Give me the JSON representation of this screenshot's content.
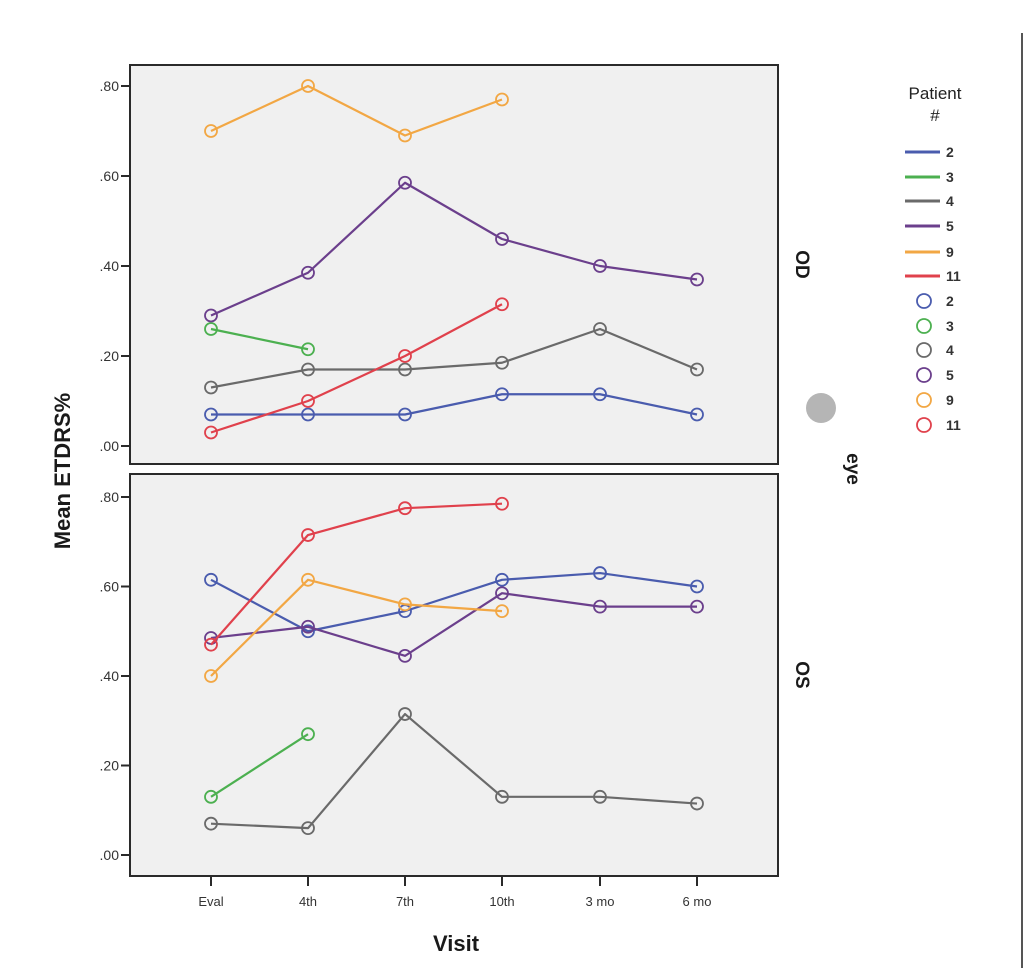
{
  "chart_data": {
    "type": "line",
    "title": "",
    "xlabel": "Visit",
    "ylabel": "Mean ETDRS%",
    "categories": [
      "Eval",
      "4th",
      "7th",
      "10th",
      "3 mo",
      "6 mo"
    ],
    "ylim": [
      0,
      0.84
    ],
    "yticks": [
      0,
      0.2,
      0.4,
      0.6,
      0.8
    ],
    "ytick_labels": [
      ".00",
      ".20",
      ".40",
      ".60",
      ".80"
    ],
    "grid": false,
    "facet_variable": "eye",
    "legend": {
      "title_line1": "Patient",
      "title_line2": "#",
      "placement": "right",
      "line_entries": [
        {
          "label": "2",
          "color": "#4a5cae"
        },
        {
          "label": "3",
          "color": "#4cb050"
        },
        {
          "label": "4",
          "color": "#6a6a6a"
        },
        {
          "label": "5",
          "color": "#6b3f8c"
        },
        {
          "label": "9",
          "color": "#f2a744"
        },
        {
          "label": "11",
          "color": "#e0414c"
        }
      ],
      "marker_entries": [
        {
          "label": "2",
          "color": "#4a5cae"
        },
        {
          "label": "3",
          "color": "#4cb050"
        },
        {
          "label": "4",
          "color": "#6a6a6a"
        },
        {
          "label": "5",
          "color": "#6b3f8c"
        },
        {
          "label": "9",
          "color": "#f2a744"
        },
        {
          "label": "11",
          "color": "#e0414c"
        }
      ]
    },
    "panels": [
      {
        "facet": "OD",
        "series": [
          {
            "name": "2",
            "color": "#4a5cae",
            "values": [
              0.07,
              0.07,
              0.07,
              0.115,
              0.115,
              0.07
            ]
          },
          {
            "name": "3",
            "color": "#4cb050",
            "values": [
              0.26,
              0.215,
              null,
              null,
              null,
              null
            ]
          },
          {
            "name": "4",
            "color": "#6a6a6a",
            "values": [
              0.13,
              0.17,
              0.17,
              0.185,
              0.26,
              0.17
            ]
          },
          {
            "name": "5",
            "color": "#6b3f8c",
            "values": [
              0.29,
              0.385,
              0.585,
              0.46,
              0.4,
              0.37
            ]
          },
          {
            "name": "9",
            "color": "#f2a744",
            "values": [
              0.7,
              0.8,
              0.69,
              0.77,
              null,
              null
            ]
          },
          {
            "name": "11",
            "color": "#e0414c",
            "values": [
              0.03,
              0.1,
              0.2,
              0.315,
              null,
              null
            ]
          }
        ]
      },
      {
        "facet": "OS",
        "series": [
          {
            "name": "2",
            "color": "#4a5cae",
            "values": [
              0.615,
              0.5,
              0.545,
              0.615,
              0.63,
              0.6
            ]
          },
          {
            "name": "3",
            "color": "#4cb050",
            "values": [
              0.13,
              0.27,
              null,
              null,
              null,
              null
            ]
          },
          {
            "name": "4",
            "color": "#6a6a6a",
            "values": [
              0.07,
              0.06,
              0.315,
              0.13,
              0.13,
              0.115
            ]
          },
          {
            "name": "5",
            "color": "#6b3f8c",
            "values": [
              0.485,
              0.51,
              0.445,
              0.585,
              0.555,
              0.555
            ]
          },
          {
            "name": "9",
            "color": "#f2a744",
            "values": [
              0.4,
              0.615,
              0.56,
              0.545,
              null,
              null
            ]
          },
          {
            "name": "11",
            "color": "#e0414c",
            "values": [
              0.47,
              0.715,
              0.775,
              0.785,
              null,
              null
            ]
          }
        ]
      }
    ],
    "facet_labels": [
      "OD",
      "OS"
    ],
    "facet_title": "eye"
  },
  "overlay": {
    "indicator_dot_color": "#b5b5b5"
  }
}
